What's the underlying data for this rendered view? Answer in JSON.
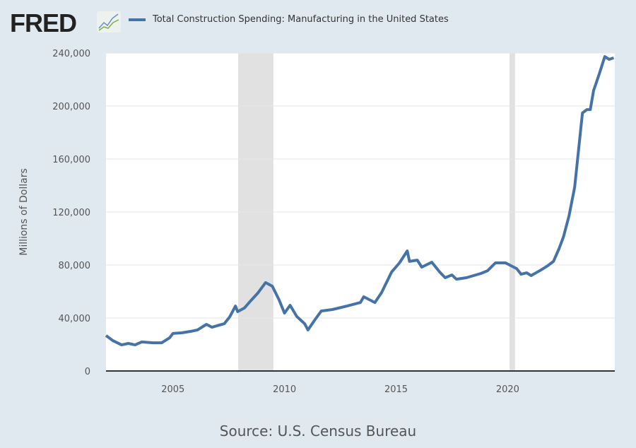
{
  "logo": {
    "text": "FRED"
  },
  "source": "Source: U.S. Census Bureau",
  "colors": {
    "line": "#4572a7",
    "recession": "#e1e1e1",
    "background": "#e1e9f0"
  },
  "chart_data": {
    "type": "line",
    "title": "",
    "series": [
      {
        "name": "Total Construction Spending: Manufacturing in the United States",
        "x": [
          2002.0,
          2002.3,
          2002.7,
          2003.0,
          2003.3,
          2003.6,
          2004.1,
          2004.5,
          2004.85,
          2005.0,
          2005.4,
          2005.8,
          2006.1,
          2006.5,
          2006.75,
          2007.3,
          2007.55,
          2007.8,
          2007.9,
          2008.2,
          2008.5,
          2008.8,
          2009.15,
          2009.45,
          2009.75,
          2010.0,
          2010.25,
          2010.55,
          2010.9,
          2011.05,
          2011.35,
          2011.65,
          2012.15,
          2012.8,
          2013.4,
          2013.55,
          2014.05,
          2014.35,
          2014.8,
          2015.15,
          2015.5,
          2015.6,
          2015.95,
          2016.15,
          2016.6,
          2016.95,
          2017.2,
          2017.5,
          2017.7,
          2018.15,
          2018.8,
          2019.1,
          2019.45,
          2019.9,
          2020.4,
          2020.6,
          2020.85,
          2021.05,
          2021.5,
          2021.8,
          2022.05,
          2022.3,
          2022.5,
          2022.75,
          2023.0,
          2023.15,
          2023.35,
          2023.55,
          2023.7,
          2023.85,
          2024.1,
          2024.35,
          2024.55,
          2024.75
        ],
        "values": [
          26700,
          23000,
          19700,
          20800,
          19700,
          21900,
          21300,
          21300,
          25000,
          28300,
          28800,
          29900,
          31000,
          35200,
          33000,
          35700,
          41000,
          49000,
          44800,
          47500,
          53300,
          58700,
          66700,
          64000,
          53900,
          43700,
          49600,
          41100,
          35700,
          31000,
          38400,
          45300,
          46400,
          49000,
          51700,
          56000,
          51700,
          59200,
          74700,
          81600,
          90600,
          82700,
          83700,
          78400,
          82100,
          74700,
          70400,
          72500,
          69300,
          70400,
          73600,
          75700,
          81600,
          81600,
          77300,
          73000,
          74100,
          72000,
          76300,
          79500,
          82700,
          92300,
          101300,
          117300,
          138700,
          162700,
          194700,
          197300,
          197300,
          211700,
          224000,
          237300,
          235200,
          236300
        ]
      }
    ],
    "recessions": [
      [
        2007.92,
        2009.5
      ],
      [
        2020.08,
        2020.33
      ]
    ],
    "xlabel": "",
    "ylabel": "Millions of Dollars",
    "xlim": [
      2002.0,
      2024.8
    ],
    "ylim": [
      0,
      240000
    ],
    "xticks": [
      2005,
      2010,
      2015,
      2020
    ],
    "xtick_labels": [
      "2005",
      "2010",
      "2015",
      "2020"
    ],
    "yticks": [
      0,
      40000,
      80000,
      120000,
      160000,
      200000,
      240000
    ],
    "ytick_labels": [
      "0",
      "40,000",
      "80,000",
      "120,000",
      "160,000",
      "200,000",
      "240,000"
    ],
    "grid": true,
    "legend": "top-left"
  }
}
